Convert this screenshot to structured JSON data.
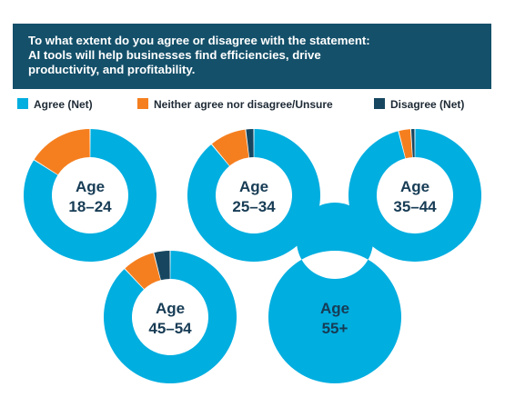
{
  "header": {
    "title_lines": [
      "To what extent do you agree or disagree with the statement:",
      "AI tools will help businesses find efficiencies, drive",
      "productivity, and profitability."
    ]
  },
  "legend": [
    {
      "label": "Agree (Net)",
      "color": "#00aee0"
    },
    {
      "label": "Neither agree nor disagree/Unsure",
      "color": "#f57f1f"
    },
    {
      "label": "Disagree (Net)",
      "color": "#174760"
    }
  ],
  "chart_data": {
    "type": "pie",
    "style": "donut",
    "series_names": [
      "Agree (Net)",
      "Neither agree nor disagree/Unsure",
      "Disagree (Net)"
    ],
    "colors": [
      "#00aee0",
      "#f57f1f",
      "#174760"
    ],
    "charts": [
      {
        "label_lines": [
          "Age",
          "18–24"
        ],
        "values": [
          84,
          16,
          0
        ]
      },
      {
        "label_lines": [
          "Age",
          "25–34"
        ],
        "values": [
          89,
          9,
          2
        ]
      },
      {
        "label_lines": [
          "Age",
          "35–44"
        ],
        "values": [
          96,
          3,
          1
        ]
      },
      {
        "label_lines": [
          "Age",
          "45–54"
        ],
        "values": [
          88,
          8,
          4
        ]
      },
      {
        "label_lines": [
          "Age",
          "55+"
        ],
        "values": [
          100,
          0,
          0
        ]
      }
    ]
  }
}
